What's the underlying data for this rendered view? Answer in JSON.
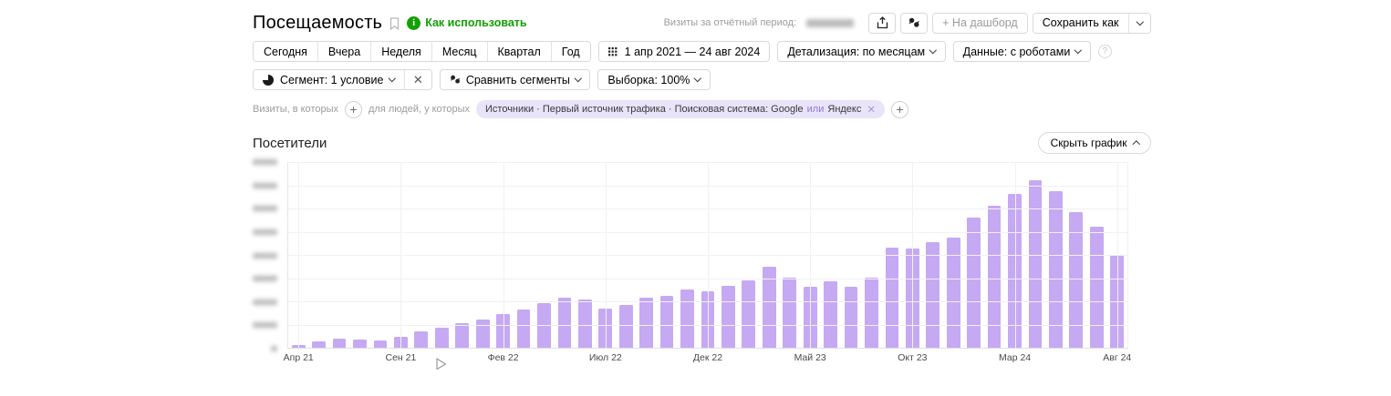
{
  "header": {
    "title": "Посещаемость",
    "how_to_use_link": "Как использовать",
    "visits_period_label": "Визиты за отчётный период:",
    "dashboard_button": "+ На дашборд",
    "save_as_button": "Сохранить как"
  },
  "toolbar": {
    "period_tabs": [
      "Сегодня",
      "Вчера",
      "Неделя",
      "Месяц",
      "Квартал",
      "Год"
    ],
    "date_range": "1 апр 2021 — 24 авг 2024",
    "detalization_dropdown": "Детализация: по месяцам",
    "data_dropdown": "Данные: с роботами"
  },
  "segments": {
    "segment_dropdown": "Сегмент: 1 условие",
    "compare_dropdown": "Сравнить сегменты",
    "sampling_dropdown": "Выборка: 100%"
  },
  "filter": {
    "visits_in_which": "Визиты, в которых",
    "for_people": "для людей, у которых",
    "pill_condition": "Источники · Первый источник трафика · Поисковая система: Google",
    "pill_or": "или",
    "pill_alt_value": "Яндекс"
  },
  "chart_header": {
    "title": "Посетители",
    "hide_chart_button": "Скрыть график"
  },
  "chart_data": {
    "type": "bar",
    "title": "Посетители",
    "x_start": "Апр 21",
    "x_end": "Авг 24",
    "bar_count": 41,
    "tick_every_n_bars": 5,
    "x_tick_labels": [
      "Апр 21",
      "Сен 21",
      "Фев 22",
      "Июл 22",
      "Дек 22",
      "Май 23",
      "Окт 23",
      "Мар 24",
      "Авг 24"
    ],
    "values_pct_of_ymax": [
      1.5,
      3.4,
      4.9,
      4.4,
      3.9,
      5.9,
      8.8,
      10.7,
      13.2,
      15.1,
      18,
      20.5,
      23.9,
      26.8,
      25.9,
      21,
      22.9,
      26.8,
      27.8,
      31.2,
      30.2,
      33.2,
      36.1,
      43.4,
      37.6,
      32.7,
      35.6,
      32.7,
      37.6,
      54.1,
      53.2,
      57.1,
      59.5,
      70.2,
      76.6,
      82.9,
      90.2,
      84.4,
      73.2,
      65.4,
      50.2
    ],
    "y_axis_labels": "redacted_blurred_in_source",
    "y_gridline_count": 8,
    "grid": true,
    "legend": false,
    "bar_color": "#c6a9f3"
  },
  "colors": {
    "accent_green": "#14a005",
    "bar": "#c6a9f3",
    "pill_bg": "#e9e4f9"
  }
}
